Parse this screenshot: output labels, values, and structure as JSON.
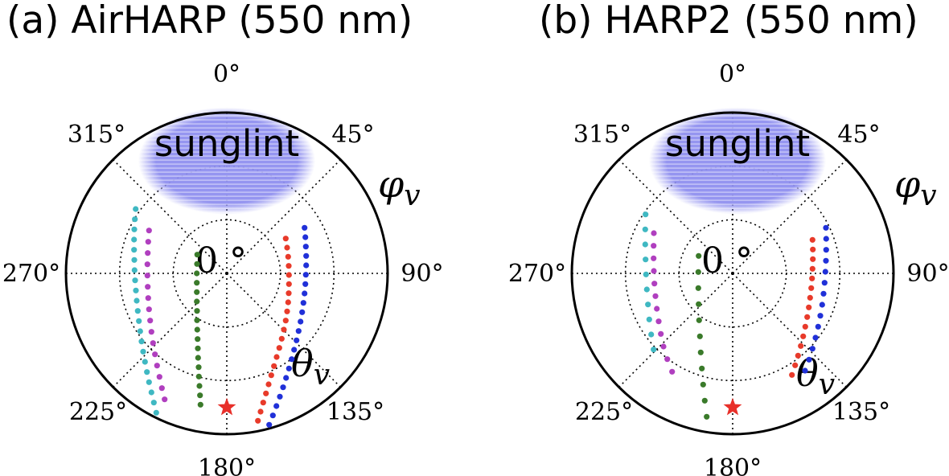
{
  "chart_data": [
    {
      "type": "scatter",
      "projection": "polar",
      "title": "(a) AirHARP (550 nm)",
      "angle_label": "φv",
      "radius_label": "θv",
      "center_label": "0 °",
      "angle_ticks": [
        "0°",
        "45°",
        "90°",
        "135°",
        "180°",
        "225°",
        "270°",
        "315°"
      ],
      "rings": [
        20,
        40,
        60
      ],
      "rlim": [
        0,
        60
      ],
      "grid": true,
      "sunglint": {
        "label": "sunglint",
        "color": "#8f8fef",
        "center_x": 0,
        "center_y": 42,
        "rx": 33,
        "ry": 20
      },
      "sun_marker": {
        "x": 0,
        "y": -50,
        "color": "#e8302a"
      },
      "series": [
        {
          "color": "#3fb8c2",
          "x": [
            -34,
            -34.3,
            -34.5,
            -34.6,
            -34.6,
            -34.5,
            -34.4,
            -34.2,
            -33.9,
            -33.6,
            -33.2,
            -32.8,
            -32.3,
            -31.8,
            -31.2,
            -30.5,
            -29.8,
            -29,
            -28.1,
            -27.2,
            -26.3
          ],
          "y": [
            24,
            20.2,
            16.4,
            12.6,
            8.8,
            5,
            1.2,
            -2.6,
            -6.4,
            -10.2,
            -14,
            -17.8,
            -21.6,
            -25.4,
            -29.2,
            -33,
            -36.8,
            -40.6,
            -44.4,
            -48.2,
            -52
          ]
        },
        {
          "color": "#b03fbf",
          "x": [
            -29,
            -29.3,
            -29.5,
            -29.6,
            -29.6,
            -29.5,
            -29.3,
            -29,
            -28.6,
            -28.1,
            -27.5,
            -26.8,
            -26,
            -25.1,
            -24.2,
            -23.2
          ],
          "y": [
            16,
            11.8,
            7.6,
            3.4,
            -0.8,
            -5,
            -9.2,
            -13.4,
            -17.6,
            -21.8,
            -26,
            -30.2,
            -34.4,
            -38.6,
            -42.8,
            -47
          ]
        },
        {
          "color": "#3a7a2a",
          "x": [
            -11,
            -11.1,
            -11.2,
            -11.2,
            -11.2,
            -11.2,
            -11.1,
            -11.1,
            -11,
            -10.9,
            -10.8,
            -10.7,
            -10.5,
            -10.4,
            -10.2,
            -10,
            -9.8
          ],
          "y": [
            7,
            3.5,
            0,
            -3.5,
            -7,
            -10.5,
            -14,
            -17.5,
            -21,
            -24.5,
            -28,
            -31.5,
            -35,
            -38.5,
            -42,
            -45.5,
            -49
          ]
        },
        {
          "color": "#e83a2a",
          "x": [
            22,
            22.5,
            22.9,
            23.1,
            23.2,
            23.2,
            23.1,
            22.9,
            22.5,
            22,
            21.3,
            20.5,
            19.6,
            18.6,
            17.6,
            16.6,
            15.6,
            14.6,
            13.6,
            12.6,
            11.6
          ],
          "y": [
            13,
            9.6,
            6.2,
            2.8,
            -0.6,
            -4,
            -7.4,
            -10.8,
            -14.2,
            -17.6,
            -21,
            -24.4,
            -27.8,
            -31.2,
            -34.6,
            -38,
            -41.4,
            -44.8,
            -48.2,
            -51.6,
            -55
          ]
        },
        {
          "color": "#2030d8",
          "x": [
            29,
            29.3,
            29.5,
            29.6,
            29.6,
            29.5,
            29.3,
            29,
            28.6,
            28.1,
            27.5,
            26.8,
            26,
            25.1,
            24.2,
            23.2,
            22.1,
            21,
            19.8,
            18.5,
            17.2,
            15.8
          ],
          "y": [
            17,
            13.5,
            10,
            6.5,
            3,
            -0.5,
            -4,
            -7.5,
            -11,
            -14.5,
            -18,
            -21.5,
            -25,
            -28.5,
            -32,
            -35.5,
            -39,
            -42.5,
            -46,
            -49.5,
            -53,
            -56.5
          ]
        }
      ]
    },
    {
      "type": "scatter",
      "projection": "polar",
      "title": "(b) HARP2 (550 nm)",
      "angle_label": "φv",
      "radius_label": "θv",
      "center_label": "0 °",
      "angle_ticks": [
        "0°",
        "45°",
        "90°",
        "135°",
        "180°",
        "225°",
        "270°",
        "315°"
      ],
      "rings": [
        20,
        40,
        60
      ],
      "rlim": [
        0,
        60
      ],
      "grid": true,
      "sunglint": {
        "label": "sunglint",
        "color": "#8f8fef",
        "center_x": 0,
        "center_y": 42,
        "rx": 33,
        "ry": 20
      },
      "sun_marker": {
        "x": 0,
        "y": -50,
        "color": "#e8302a"
      },
      "series": [
        {
          "color": "#3fb8c2",
          "x": [
            -32.5,
            -32.6,
            -32.6,
            -32.5,
            -32.3,
            -32,
            -31.6,
            -31.1,
            -30.4,
            -29.5
          ],
          "y": [
            22,
            16.4,
            10.8,
            5.2,
            -0.4,
            -6,
            -11.6,
            -17.2,
            -22.8,
            -28.4
          ]
        },
        {
          "color": "#b03fbf",
          "x": [
            -29.4,
            -29.5,
            -29.5,
            -29.4,
            -29.2,
            -28.8,
            -28.3,
            -27.6,
            -26.8,
            -25.8,
            -24.4,
            -22.6
          ],
          "y": [
            15,
            10.3,
            5.6,
            0.9,
            -3.8,
            -8.5,
            -13.2,
            -17.9,
            -22.6,
            -27.3,
            -32,
            -36.7
          ]
        },
        {
          "color": "#3a7a2a",
          "x": [
            -12.7,
            -12.8,
            -12.8,
            -12.7,
            -12.5,
            -12.2,
            -11.9,
            -11.5,
            -11,
            -10.4,
            -9.7
          ],
          "y": [
            6.5,
            0.5,
            -5.5,
            -11.5,
            -17.5,
            -23.5,
            -29.5,
            -35.5,
            -41.5,
            -47.5,
            -53.5
          ]
        },
        {
          "color": "#e83a2a",
          "x": [
            29.8,
            29.9,
            29.9,
            29.8,
            29.6,
            29.3,
            28.9,
            28.4,
            27.8,
            27.1,
            26.3,
            25.4,
            24.4,
            23.3,
            22.1
          ],
          "y": [
            12.5,
            8.9,
            5.3,
            1.7,
            -1.9,
            -5.5,
            -9.1,
            -12.7,
            -16.3,
            -19.9,
            -23.5,
            -27.1,
            -30.7,
            -34.3,
            -37.9
          ]
        },
        {
          "color": "#2030d8",
          "x": [
            34.8,
            34.9,
            34.9,
            34.8,
            34.6,
            34.3,
            33.9,
            33.4,
            32.7,
            31.9,
            30.9,
            29.8,
            28.5,
            27
          ],
          "y": [
            17,
            12.9,
            8.8,
            4.7,
            0.6,
            -3.5,
            -7.6,
            -11.7,
            -15.8,
            -19.9,
            -24,
            -28.1,
            -32.2,
            -36.3
          ]
        }
      ]
    }
  ]
}
